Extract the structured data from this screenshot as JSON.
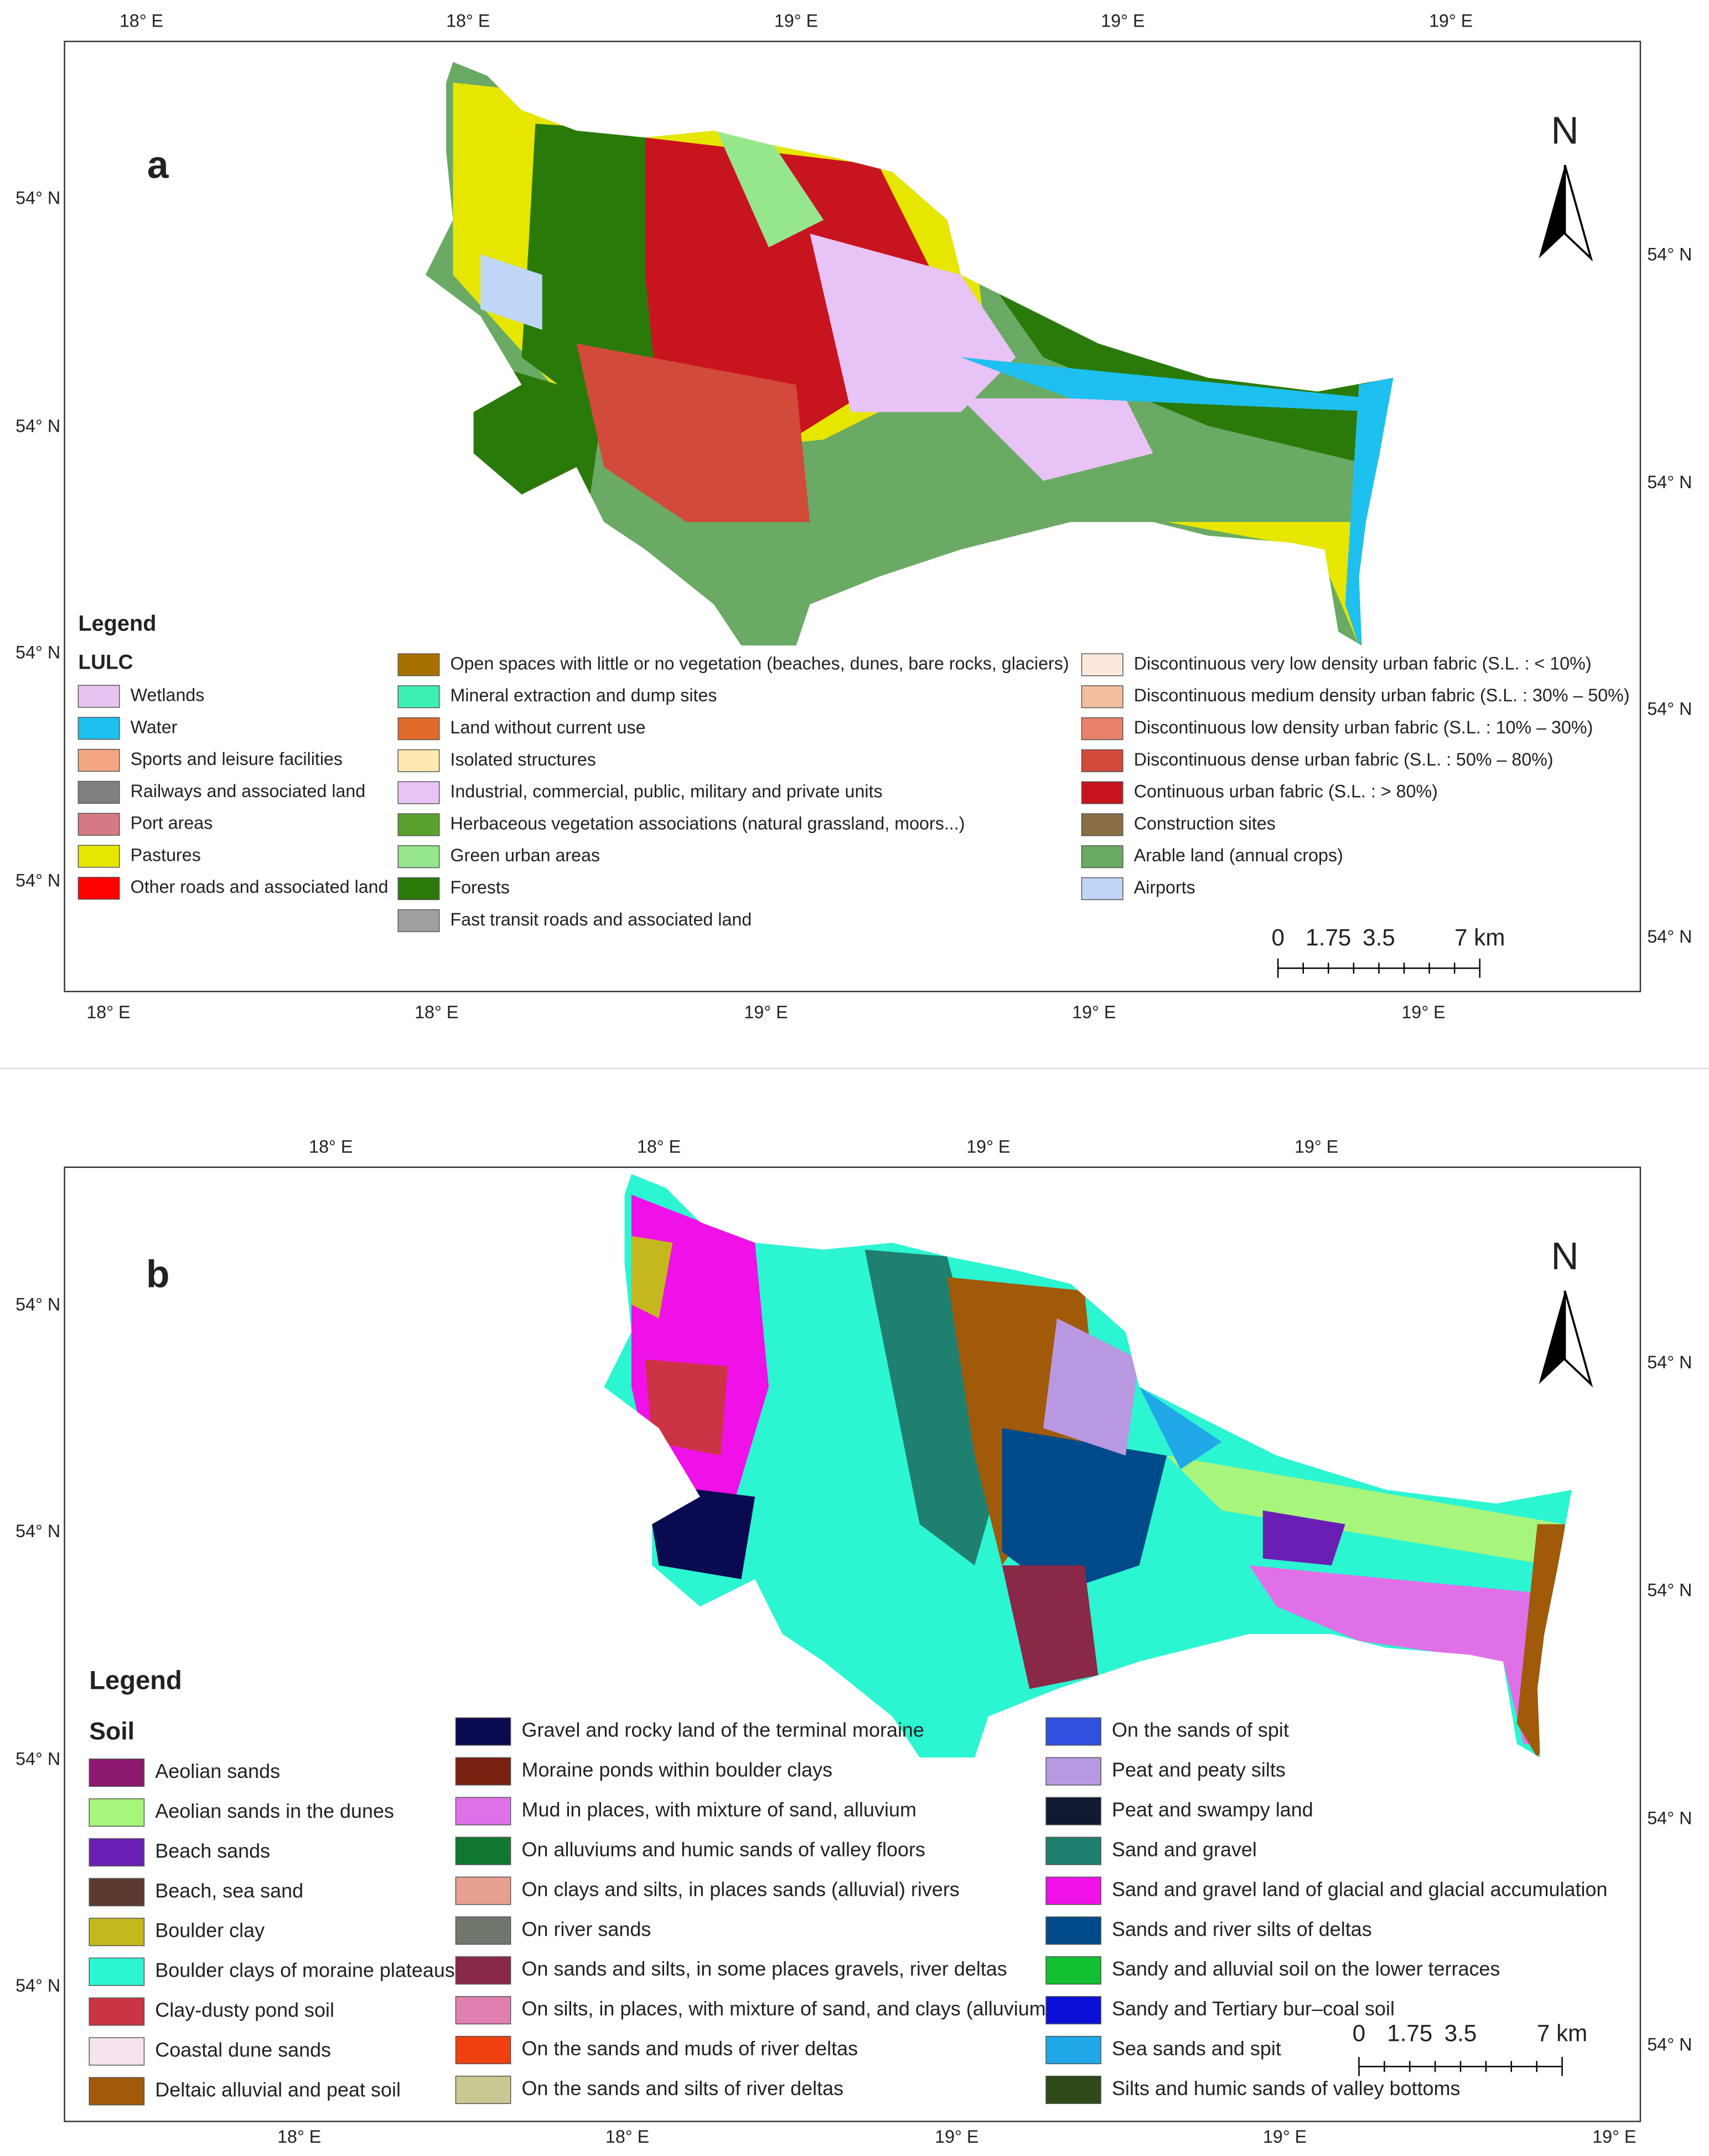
{
  "panels": [
    {
      "label": "a",
      "top_ticks": [
        "18° E",
        "18° E",
        "19° E",
        "19° E",
        "19° E"
      ],
      "bottom_ticks": [
        "18° E",
        "18° E",
        "19° E",
        "19° E",
        "19° E"
      ],
      "left_ticks": [
        "54° N",
        "54° N",
        "54° N",
        "54° N"
      ],
      "right_ticks": [
        "54° N",
        "54° N",
        "54° N",
        "54° N"
      ],
      "north": "N",
      "legend": {
        "title": "Legend",
        "subtitle": "LULC",
        "columns": [
          [
            {
              "label": "Wetlands",
              "color": "#e6c3f0"
            },
            {
              "label": "Water",
              "color": "#1ec0f0"
            },
            {
              "label": "Sports and leisure facilities",
              "color": "#f4a582"
            },
            {
              "label": "Railways and associated land",
              "color": "#808080"
            },
            {
              "label": "Port areas",
              "color": "#d57a82"
            },
            {
              "label": "Pastures",
              "color": "#e6e600"
            },
            {
              "label": "Other roads and associated land",
              "color": "#ff0000"
            }
          ],
          [
            {
              "label": "Open spaces with little or no vegetation (beaches, dunes, bare rocks, glaciers)",
              "color": "#a87000"
            },
            {
              "label": "Mineral extraction and dump sites",
              "color": "#3cf0b4"
            },
            {
              "label": "Land without current use",
              "color": "#e06a2a"
            },
            {
              "label": "Isolated structures",
              "color": "#fde9b0"
            },
            {
              "label": "Industrial, commercial, public, military and private units",
              "color": "#e8c3f5"
            },
            {
              "label": "Herbaceous vegetation associations (natural grassland, moors...)",
              "color": "#5aa02c"
            },
            {
              "label": "Green urban areas",
              "color": "#96e68c"
            },
            {
              "label": "Forests",
              "color": "#2a7a0a"
            },
            {
              "label": "Fast transit roads and associated land",
              "color": "#a0a0a0"
            }
          ],
          [
            {
              "label": "Discontinuous very low density urban fabric (S.L. : < 10%)",
              "color": "#fde9dc"
            },
            {
              "label": "Discontinuous medium density urban fabric (S.L. : 30% – 50%)",
              "color": "#f4bea0"
            },
            {
              "label": "Discontinuous low density urban fabric (S.L. : 10% – 30%)",
              "color": "#e8826a"
            },
            {
              "label": "Discontinuous dense urban fabric (S.L. : 50% – 80%)",
              "color": "#d24a3a"
            },
            {
              "label": "Continuous urban fabric (S.L. : > 80%)",
              "color": "#c8141e"
            },
            {
              "label": "Construction sites",
              "color": "#8a6e46"
            },
            {
              "label": "Arable land (annual crops)",
              "color": "#6aaa64"
            },
            {
              "label": "Airports",
              "color": "#c0d6f8"
            }
          ]
        ]
      },
      "scale": [
        "0",
        "1.75",
        "3.5",
        "7 km"
      ]
    },
    {
      "label": "b",
      "top_ticks": [
        "18° E",
        "18° E",
        "19° E",
        "19° E"
      ],
      "bottom_ticks": [
        "18° E",
        "18° E",
        "19° E",
        "19° E",
        "19° E"
      ],
      "left_ticks": [
        "54° N",
        "54° N",
        "54° N",
        "54° N"
      ],
      "right_ticks": [
        "54° N",
        "54° N",
        "54° N",
        "54° N"
      ],
      "north": "N",
      "legend": {
        "title": "Legend",
        "subtitle": "Soil",
        "columns": [
          [
            {
              "label": "Aeolian sands",
              "color": "#8b1a6e"
            },
            {
              "label": "Aeolian sands in the dunes",
              "color": "#a8f57c"
            },
            {
              "label": "Beach sands",
              "color": "#6a1fb4"
            },
            {
              "label": "Beach, sea sand",
              "color": "#5c3a30"
            },
            {
              "label": "Boulder clay",
              "color": "#c4b81e"
            },
            {
              "label": "Boulder clays of moraine plateaus",
              "color": "#2cf5d2"
            },
            {
              "label": "Clay-dusty pond soil",
              "color": "#cc3344"
            },
            {
              "label": "Coastal dune sands",
              "color": "#f5e3f0"
            },
            {
              "label": "Deltaic alluvial and peat soil",
              "color": "#a05a0a"
            }
          ],
          [
            {
              "label": "Gravel and rocky land of the terminal moraine",
              "color": "#0a0a50"
            },
            {
              "label": "Moraine ponds within boulder clays",
              "color": "#7a2010"
            },
            {
              "label": "Mud in places, with mixture of sand, alluvium",
              "color": "#e070e8"
            },
            {
              "label": "On alluviums and humic sands of valley floors",
              "color": "#107830"
            },
            {
              "label": "On clays and silts, in places sands (alluvial) rivers",
              "color": "#e8a090"
            },
            {
              "label": "On river sands",
              "color": "#70786e"
            },
            {
              "label": "On sands and silts, in some places gravels, river deltas",
              "color": "#8a2848"
            },
            {
              "label": "On silts, in places, with mixture of sand, and clays (alluvium)",
              "color": "#e080b0"
            },
            {
              "label": "On the sands and muds of river deltas",
              "color": "#f04010"
            },
            {
              "label": "On the sands and silts of river deltas",
              "color": "#c8c890"
            }
          ],
          [
            {
              "label": "On the sands of spit",
              "color": "#3050e0"
            },
            {
              "label": "Peat and peaty silts",
              "color": "#b898e0"
            },
            {
              "label": "Peat and swampy land",
              "color": "#101a30"
            },
            {
              "label": "Sand and gravel",
              "color": "#208070"
            },
            {
              "label": "Sand and gravel land of glacial and glacial accumulation",
              "color": "#f010e8"
            },
            {
              "label": "Sands and river silts of deltas",
              "color": "#004a8a"
            },
            {
              "label": "Sandy and alluvial soil on the lower terraces",
              "color": "#10c030"
            },
            {
              "label": "Sandy and Tertiary bur–coal soil",
              "color": "#0a10d8"
            },
            {
              "label": "Sea sands and spit",
              "color": "#20a8e8"
            },
            {
              "label": "Silts and humic sands of valley bottoms",
              "color": "#2e4a18"
            }
          ]
        ]
      },
      "scale": [
        "0",
        "1.75",
        "3.5",
        "7 km"
      ]
    }
  ]
}
